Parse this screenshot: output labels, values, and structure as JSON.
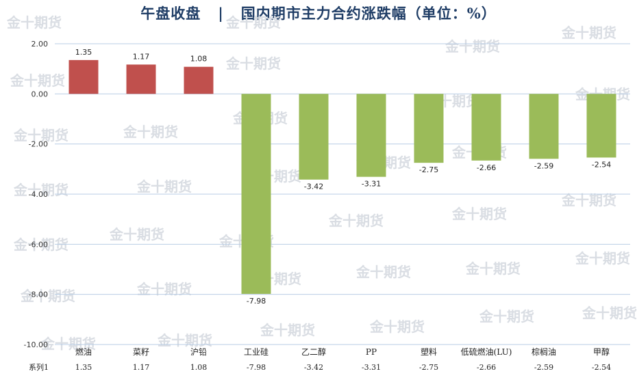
{
  "chart_data": {
    "type": "bar",
    "title": "午盘收盘   |   国内期市主力合约涨跌幅（单位：%）",
    "categories": [
      "燃油",
      "菜籽",
      "沪铅",
      "工业硅",
      "乙二醇",
      "PP",
      "塑料",
      "低硫燃油(LU)",
      "棕榈油",
      "甲醇"
    ],
    "series": [
      {
        "name": "系列1",
        "values": [
          1.35,
          1.17,
          1.08,
          -7.98,
          -3.42,
          -3.31,
          -2.75,
          -2.66,
          -2.59,
          -2.54
        ]
      }
    ],
    "value_labels": [
      "1.35",
      "1.17",
      "1.08",
      "-7.98",
      "-3.42",
      "-3.31",
      "-2.75",
      "-2.66",
      "-2.59",
      "-2.54"
    ],
    "ylim": [
      -10,
      2
    ],
    "yticks": [
      2,
      0,
      -2,
      -4,
      -6,
      -8,
      -10
    ],
    "ytick_labels": [
      "2.00",
      "0.00",
      "-2.00",
      "-4.00",
      "-6.00",
      "-8.00",
      "-10.00"
    ],
    "grid": true,
    "data_table": true,
    "colors": {
      "positive": "#c0504d",
      "negative": "#9bbb59",
      "grid": "#b9cde5"
    },
    "watermark": "金十期货"
  }
}
